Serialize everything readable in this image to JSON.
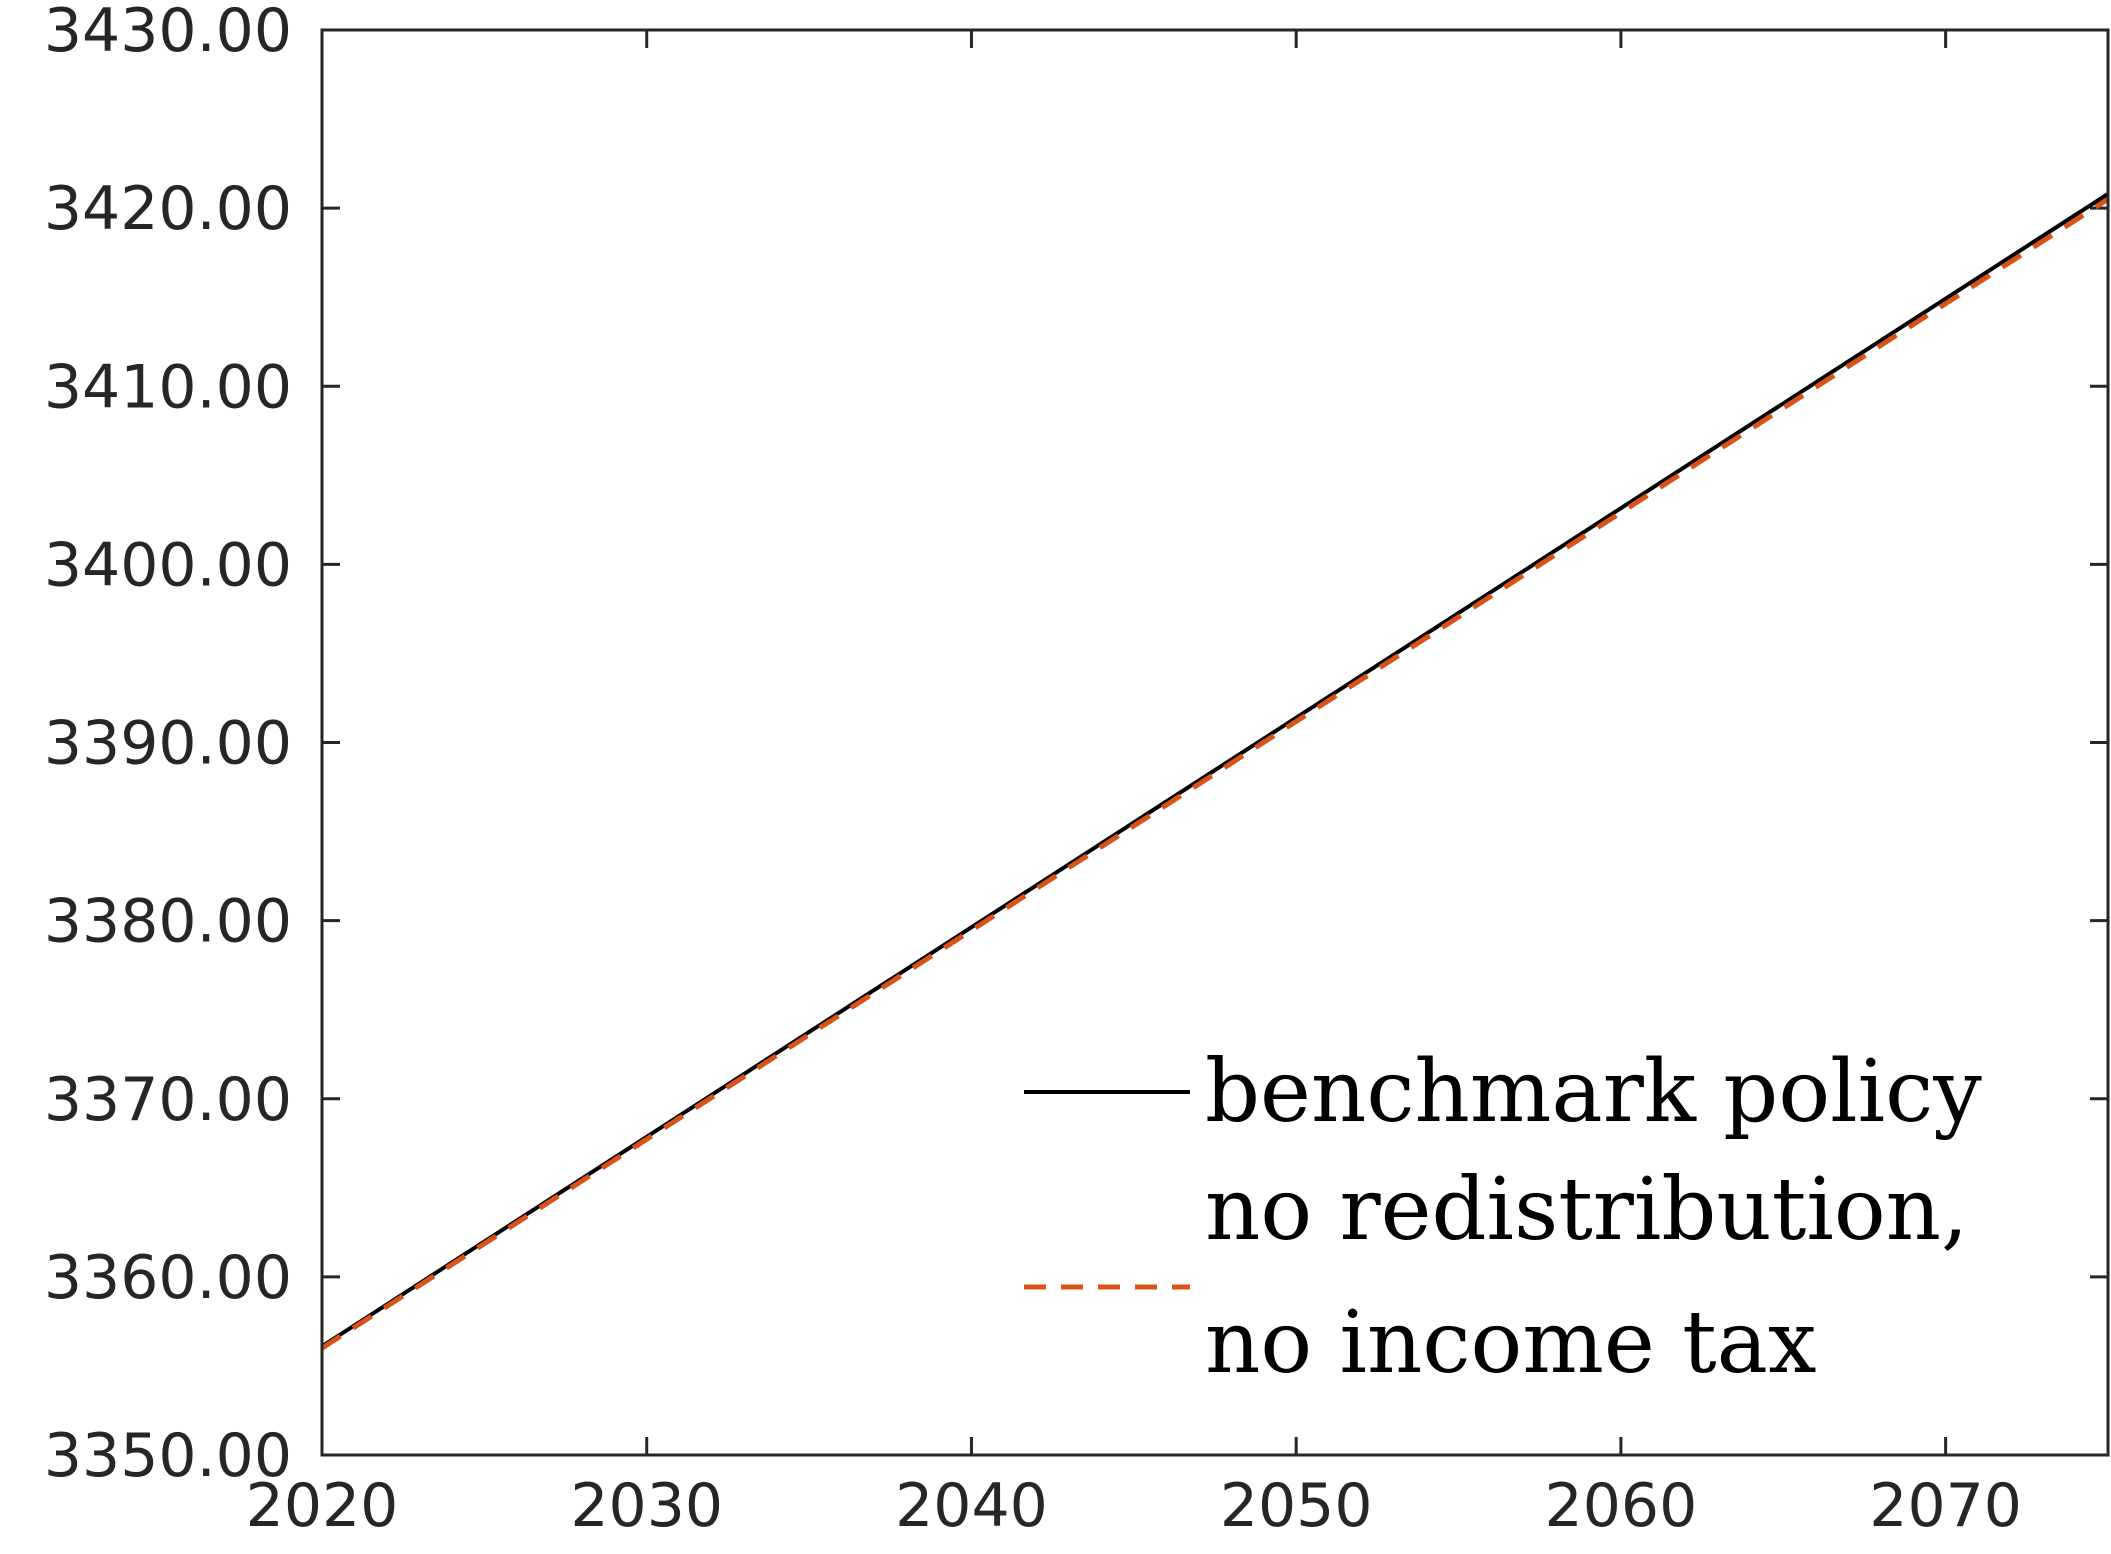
{
  "chart_data": {
    "type": "line",
    "title": "",
    "xlabel": "",
    "ylabel": "",
    "xlim": [
      2020,
      2075
    ],
    "ylim": [
      3350,
      3430
    ],
    "xticks": [
      2020,
      2030,
      2040,
      2050,
      2060,
      2070
    ],
    "yticks": [
      3350,
      3360,
      3370,
      3380,
      3390,
      3400,
      3410,
      3420,
      3430
    ],
    "xtick_labels": [
      "2020",
      "2030",
      "2040",
      "2050",
      "2060",
      "2070"
    ],
    "ytick_labels": [
      "3350.00",
      "3360.00",
      "3370.00",
      "3380.00",
      "3390.00",
      "3400.00",
      "3410.00",
      "3420.00",
      "3430.00"
    ],
    "grid": false,
    "legend_position": "bottom-right",
    "series": [
      {
        "name": "benchmark policy",
        "style": "solid",
        "color": "#000000",
        "x": [
          2020,
          2075
        ],
        "y": [
          3356.1,
          3420.8
        ]
      },
      {
        "name": "no redistribution, no income tax",
        "legend_lines": [
          "no redistribution,",
          "no income tax"
        ],
        "style": "dashed",
        "color": "#D95319",
        "x": [
          2020,
          2075
        ],
        "y": [
          3356.0,
          3420.5
        ]
      }
    ]
  }
}
